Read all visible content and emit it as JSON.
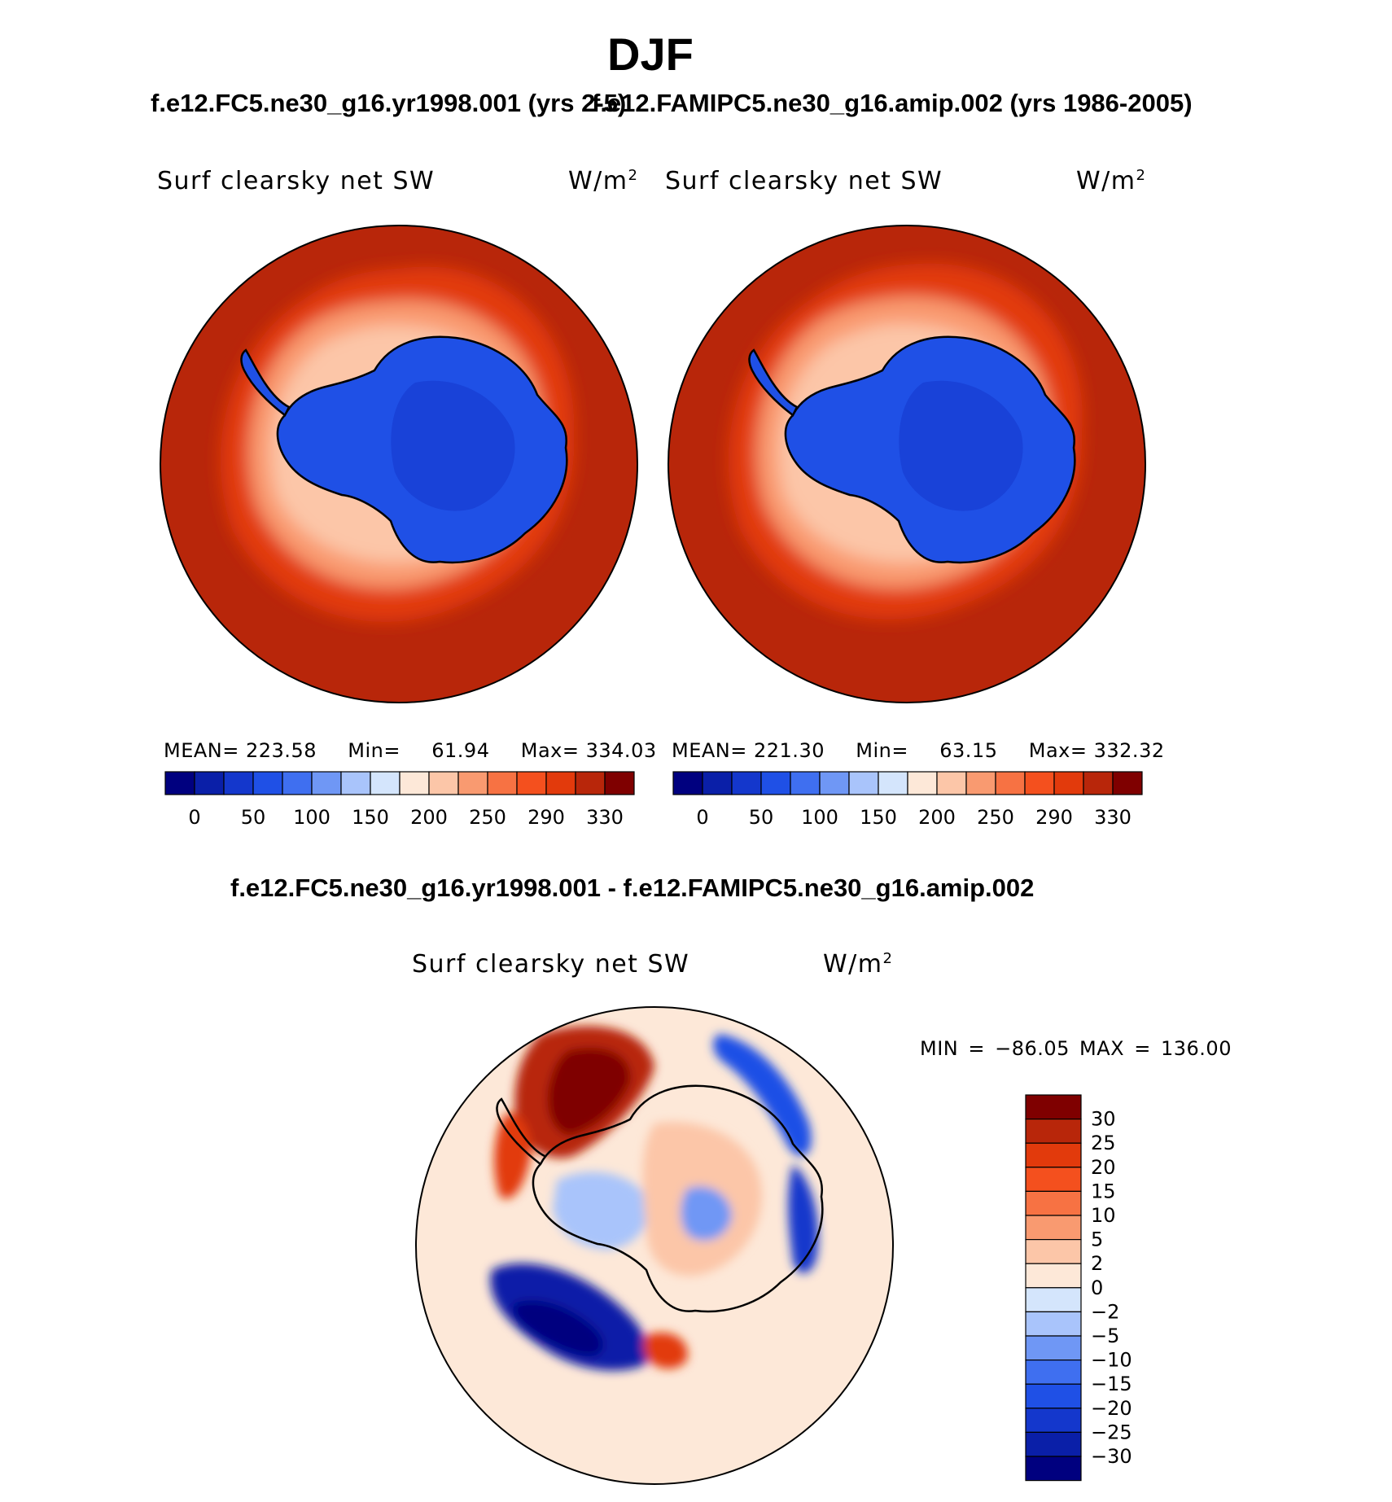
{
  "season_title": "DJF",
  "case_titles": {
    "left": "f.e12.FC5.ne30_g16.yr1998.001 (yrs 2-5)",
    "right": "f.e12.FAMIPC5.ne30_g16.amip.002 (yrs 1986-2005)",
    "diff": "f.e12.FC5.ne30_g16.yr1998.001 - f.e12.FAMIPC5.ne30_g16.amip.002"
  },
  "panels": [
    {
      "variable": "Surf clearsky net SW",
      "units": "W/m",
      "units_exp": "2",
      "stats_mean_label": "MEAN=",
      "stats_mean": "223.58",
      "stats_min_label": "Min=",
      "stats_min": "61.94",
      "stats_max_label": "Max=",
      "stats_max": "334.03"
    },
    {
      "variable": "Surf clearsky net SW",
      "units": "W/m",
      "units_exp": "2",
      "stats_mean_label": "MEAN=",
      "stats_mean": "221.30",
      "stats_min_label": "Min=",
      "stats_min": "63.15",
      "stats_max_label": "Max=",
      "stats_max": "332.32"
    }
  ],
  "diff_panel": {
    "variable": "Surf clearsky net SW",
    "units": "W/m",
    "units_exp": "2",
    "minmax_text": "MIN = −86.05 MAX = 136.00"
  },
  "colorbar_top": {
    "colors": [
      "#00007f",
      "#0a1fa8",
      "#1437cc",
      "#1f50e6",
      "#3f6ff0",
      "#6f97f5",
      "#a9c4fb",
      "#d4e5fc",
      "#fde8d8",
      "#fcc6a8",
      "#f99a70",
      "#f77243",
      "#f4501e",
      "#e23a0c",
      "#b8260a",
      "#7f0000"
    ],
    "ticks": [
      "0",
      "50",
      "100",
      "150",
      "200",
      "250",
      "290",
      "330"
    ]
  },
  "colorbar_diff": {
    "colors": [
      "#7f0000",
      "#b8260a",
      "#e23a0c",
      "#f4501e",
      "#f77243",
      "#f99a70",
      "#fcc6a8",
      "#fde8d8",
      "#d4e5fc",
      "#a9c4fb",
      "#6f97f5",
      "#3f6ff0",
      "#1f50e6",
      "#1437cc",
      "#0a1fa8",
      "#00007f"
    ],
    "ticks": [
      "30",
      "25",
      "20",
      "15",
      "10",
      "5",
      "2",
      "0",
      "−2",
      "−5",
      "−10",
      "−15",
      "−20",
      "−25",
      "−30"
    ]
  },
  "colors": {
    "ocean_high": "#b8260a",
    "land_low": "#1f50e6",
    "diff_bg": "#fde8d8"
  }
}
